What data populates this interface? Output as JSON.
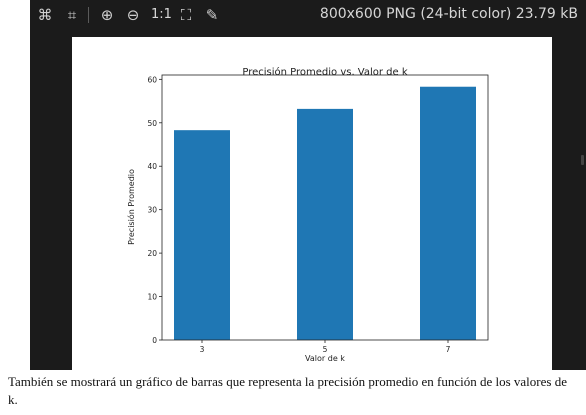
{
  "toolbar": {
    "icons": [
      "fit-icon",
      "crop-icon",
      "zoom-in-icon",
      "zoom-out-icon",
      "actual-size-icon",
      "fullscreen-icon",
      "edit-icon"
    ],
    "actual_size_label": "1:1",
    "image_info": "800x600 PNG (24-bit color) 23.79 kB"
  },
  "chart_data": {
    "type": "bar",
    "title": "Precisión Promedio vs. Valor de k",
    "xlabel": "Valor de k",
    "ylabel": "Precisión Promedio",
    "categories": [
      "3",
      "5",
      "7"
    ],
    "values": [
      48.3,
      53.2,
      58.3
    ],
    "ylim": [
      0,
      61
    ],
    "yticks": [
      "0",
      "10",
      "20",
      "30",
      "40",
      "50",
      "60"
    ],
    "bar_color": "#1f77b4",
    "grid": false
  },
  "caption": {
    "text": "También se mostrará un gráfico de barras que representa la precisión promedio en función de los valores de k."
  }
}
